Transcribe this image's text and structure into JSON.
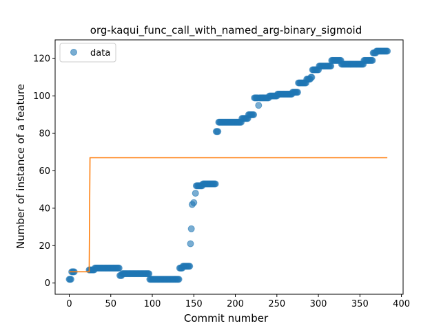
{
  "chart_data": {
    "type": "scatter",
    "title": "org-kaqui_func_call_with_named_arg-binary_sigmoid",
    "xlabel": "Commit number",
    "ylabel": "Number of instance of a feature",
    "xlim": [
      -17,
      402
    ],
    "ylim": [
      -6,
      130
    ],
    "xticks": [
      0,
      50,
      100,
      150,
      200,
      250,
      300,
      350,
      400
    ],
    "yticks": [
      0,
      20,
      40,
      60,
      80,
      100,
      120
    ],
    "grid": false,
    "legend": {
      "position": "top-left",
      "entries": [
        "data"
      ]
    },
    "colors": {
      "data": "#1f77b4",
      "fit": "#ff7f0e"
    },
    "series": [
      {
        "name": "data",
        "kind": "scatter",
        "segments": [
          [
            0,
            2,
            2
          ],
          [
            3,
            6,
            6
          ],
          [
            24,
            30,
            7
          ],
          [
            31,
            60,
            8
          ],
          [
            61,
            63,
            4
          ],
          [
            64,
            96,
            5
          ],
          [
            97,
            132,
            2
          ],
          [
            133,
            136,
            8
          ],
          [
            137,
            145,
            9
          ],
          [
            146,
            146,
            21
          ],
          [
            147,
            147,
            29
          ],
          [
            148,
            148,
            42
          ],
          [
            150,
            150,
            43
          ],
          [
            152,
            152,
            48
          ],
          [
            153,
            160,
            52
          ],
          [
            161,
            176,
            53
          ],
          [
            177,
            179,
            81
          ],
          [
            180,
            207,
            86
          ],
          [
            208,
            215,
            88
          ],
          [
            216,
            222,
            90
          ],
          [
            223,
            227,
            99
          ],
          [
            228,
            228,
            95
          ],
          [
            229,
            240,
            99
          ],
          [
            241,
            250,
            100
          ],
          [
            251,
            268,
            101
          ],
          [
            269,
            275,
            102
          ],
          [
            276,
            285,
            107
          ],
          [
            286,
            290,
            109
          ],
          [
            291,
            292,
            110
          ],
          [
            293,
            300,
            114
          ],
          [
            301,
            315,
            116
          ],
          [
            316,
            327,
            119
          ],
          [
            328,
            354,
            117
          ],
          [
            355,
            365,
            119
          ],
          [
            366,
            369,
            123
          ],
          [
            370,
            383,
            124
          ]
        ]
      },
      {
        "kind": "line",
        "points": [
          [
            0,
            6
          ],
          [
            24,
            6
          ],
          [
            25,
            67
          ],
          [
            383,
            67
          ]
        ]
      }
    ]
  }
}
